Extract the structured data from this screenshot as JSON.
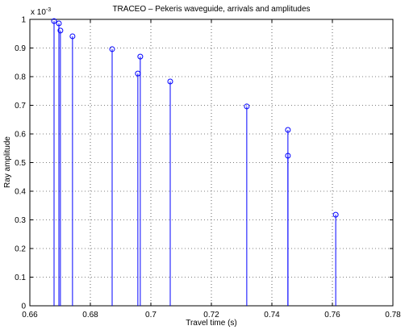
{
  "chart_data": {
    "type": "stem",
    "title": "TRACEO – Pekeris waveguide, arrivals and amplitudes",
    "x_label": "Travel time (s)",
    "y_label": "Ray amplitude",
    "y_multiplier": {
      "base": "x 10",
      "exponent": "-3"
    },
    "x": [
      0.668,
      0.6696,
      0.6701,
      0.6741,
      0.6872,
      0.6957,
      0.6965,
      0.7064,
      0.7317,
      0.7453,
      0.7453,
      0.7611
    ],
    "values": [
      0.994,
      0.986,
      0.961,
      0.941,
      0.896,
      0.811,
      0.87,
      0.783,
      0.696,
      0.614,
      0.524,
      0.318
    ],
    "color": "#0000ff",
    "xlim": [
      0.66,
      0.78
    ],
    "xticks": [
      0.66,
      0.68,
      0.7,
      0.72,
      0.74,
      0.76,
      0.78
    ],
    "ylim": [
      0,
      1
    ],
    "yticks": [
      0,
      0.1,
      0.2,
      0.3,
      0.4,
      0.5,
      0.6,
      0.7,
      0.8,
      0.9,
      1
    ],
    "grid": true
  }
}
